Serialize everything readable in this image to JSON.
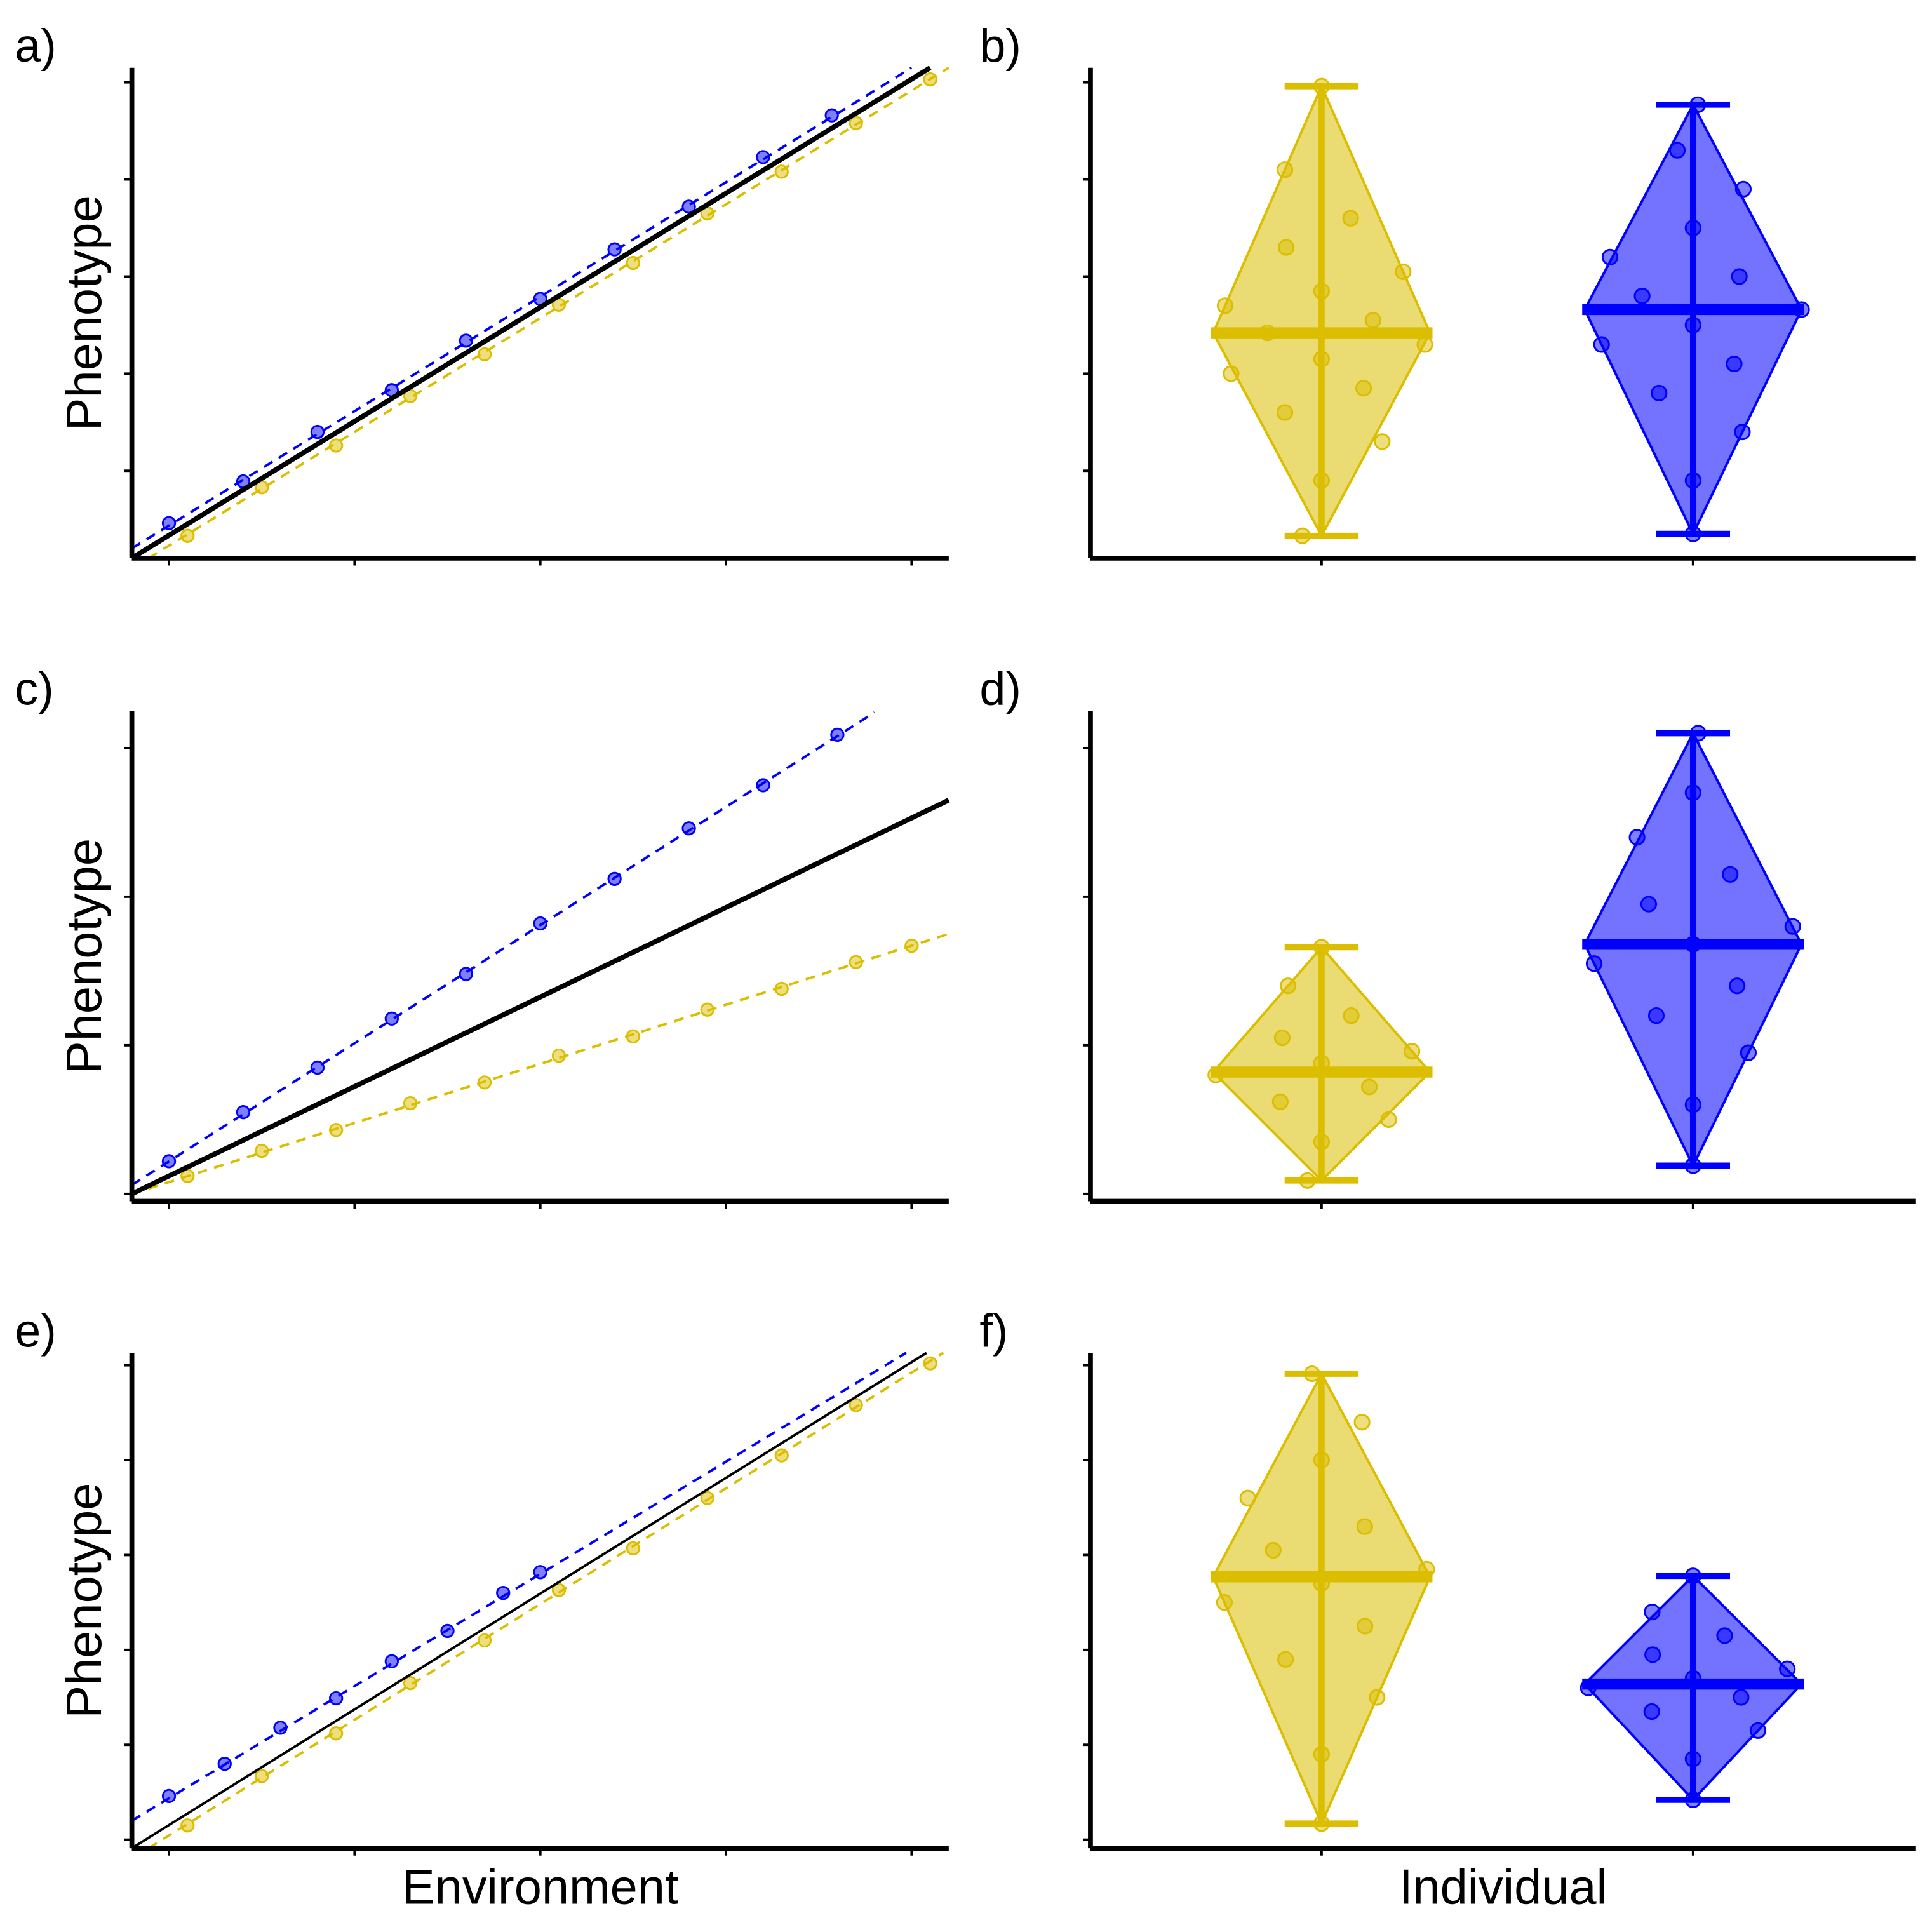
{
  "chart_data": [
    {
      "type": "scatter",
      "panel_label": "a)",
      "ylabel": "Phenotype",
      "xlim": [
        0.8,
        5.2
      ],
      "ylim": [
        0.1,
        5.15
      ],
      "xticks": [
        1,
        2,
        3,
        4,
        5
      ],
      "yticks": [
        1,
        2,
        3,
        4,
        5
      ],
      "reference_line": {
        "x": [
          0.8,
          5.1
        ],
        "y": [
          0.1,
          5.15
        ],
        "color": "#000000",
        "linewidth": 4
      },
      "series": [
        {
          "color": "#DBBE00",
          "x": [
            1.1,
            1.5,
            1.9,
            2.3,
            2.7,
            3.1,
            3.5,
            3.9,
            4.3,
            4.7,
            5.1
          ],
          "values": [
            0.33,
            0.83,
            1.26,
            1.77,
            2.2,
            2.71,
            3.14,
            3.65,
            4.08,
            4.58,
            5.03
          ],
          "fit": {
            "x": [
              0.89,
              5.2
            ],
            "y": [
              0.1,
              5.15
            ]
          }
        },
        {
          "color": "#0000FF",
          "x": [
            1.0,
            1.4,
            1.8,
            2.2,
            2.6,
            3.0,
            3.4,
            3.8,
            4.2,
            4.57
          ],
          "values": [
            0.46,
            0.89,
            1.4,
            1.83,
            2.34,
            2.77,
            3.28,
            3.72,
            4.23,
            4.66
          ],
          "fit": {
            "x": [
              0.8,
              5.0
            ],
            "y": [
              0.2,
              5.15
            ]
          }
        }
      ]
    },
    {
      "type": "beeswarm",
      "panel_label": "b)",
      "ylim": [
        0.1,
        5.15
      ],
      "yticks": [
        1,
        2,
        3,
        4,
        5
      ],
      "categories": [
        null,
        null
      ],
      "groups": [
        {
          "color": "#DBBE00",
          "min": 0.33,
          "max": 4.96,
          "mean": 2.42,
          "values": [
            0.33,
            0.9,
            1.3,
            1.6,
            1.85,
            2.0,
            2.15,
            2.3,
            2.42,
            2.55,
            2.7,
            2.85,
            3.05,
            3.3,
            3.6,
            4.1,
            4.96
          ]
        },
        {
          "color": "#0000FF",
          "min": 0.35,
          "max": 4.77,
          "mean": 2.66,
          "values": [
            0.35,
            0.9,
            1.4,
            1.8,
            2.1,
            2.3,
            2.5,
            2.66,
            2.8,
            3.0,
            3.2,
            3.5,
            3.9,
            4.3,
            4.77
          ]
        }
      ]
    },
    {
      "type": "scatter",
      "panel_label": "c)",
      "ylabel": "Phenotype",
      "xlim": [
        0.8,
        5.2
      ],
      "ylim": [
        -0.05,
        3.25
      ],
      "xticks": [
        1,
        2,
        3,
        4,
        5
      ],
      "yticks": [
        0,
        1,
        2,
        3
      ],
      "reference_line": {
        "x": [
          0.8,
          5.2
        ],
        "y": [
          0,
          2.65
        ],
        "color": "#000000",
        "linewidth": 4
      },
      "series": [
        {
          "color": "#DBBE00",
          "x": [
            1.1,
            1.5,
            1.9,
            2.3,
            2.7,
            3.1,
            3.5,
            3.9,
            4.3,
            4.7,
            5.0
          ],
          "values": [
            0.12,
            0.29,
            0.43,
            0.61,
            0.75,
            0.93,
            1.06,
            1.24,
            1.38,
            1.56,
            1.67
          ],
          "fit": {
            "x": [
              0.8,
              5.2
            ],
            "y": [
              0,
              1.75
            ]
          }
        },
        {
          "color": "#0000FF",
          "x": [
            1.0,
            1.4,
            1.8,
            2.2,
            2.6,
            3.0,
            3.4,
            3.8,
            4.2,
            4.6
          ],
          "values": [
            0.22,
            0.55,
            0.85,
            1.18,
            1.48,
            1.82,
            2.12,
            2.46,
            2.75,
            3.09
          ],
          "fit": {
            "x": [
              0.8,
              4.8
            ],
            "y": [
              0.06,
              3.24
            ]
          }
        }
      ]
    },
    {
      "type": "beeswarm",
      "panel_label": "d)",
      "ylim": [
        -0.05,
        3.25
      ],
      "yticks": [
        0,
        1,
        2,
        3
      ],
      "categories": [
        null,
        null
      ],
      "groups": [
        {
          "color": "#DBBE00",
          "min": 0.09,
          "max": 1.66,
          "mean": 0.82,
          "values": [
            0.09,
            0.35,
            0.5,
            0.62,
            0.72,
            0.8,
            0.88,
            0.96,
            1.05,
            1.2,
            1.4,
            1.66
          ]
        },
        {
          "color": "#0000FF",
          "min": 0.19,
          "max": 3.1,
          "mean": 1.68,
          "values": [
            0.19,
            0.6,
            0.95,
            1.2,
            1.4,
            1.55,
            1.68,
            1.8,
            1.95,
            2.15,
            2.4,
            2.7,
            3.1
          ]
        }
      ]
    },
    {
      "type": "scatter",
      "panel_label": "e)",
      "ylabel": "Phenotype",
      "xlabel": "Environment",
      "xlim": [
        0.8,
        5.2
      ],
      "ylim": [
        -0.09,
        5.13
      ],
      "xticks": [
        1,
        2,
        3,
        4,
        5
      ],
      "yticks": [
        0,
        1,
        2,
        3,
        4,
        5
      ],
      "reference_line": {
        "x": [
          0.8,
          5.08
        ],
        "y": [
          -0.09,
          5.13
        ],
        "color": "#000000",
        "linewidth": 2
      },
      "series": [
        {
          "color": "#DBBE00",
          "x": [
            1.1,
            1.5,
            1.9,
            2.3,
            2.7,
            3.1,
            3.5,
            3.9,
            4.3,
            4.7,
            5.1
          ],
          "values": [
            0.15,
            0.67,
            1.12,
            1.65,
            2.1,
            2.63,
            3.07,
            3.6,
            4.05,
            4.58,
            5.02
          ],
          "fit": {
            "x": [
              0.89,
              5.17
            ],
            "y": [
              -0.09,
              5.13
            ]
          }
        },
        {
          "color": "#0000FF",
          "x": [
            1.0,
            1.3,
            1.6,
            1.9,
            2.2,
            2.5,
            2.8,
            3.0
          ],
          "values": [
            0.46,
            0.8,
            1.18,
            1.49,
            1.88,
            2.2,
            2.6,
            2.82
          ],
          "fit": {
            "x": [
              0.8,
              4.97
            ],
            "y": [
              0.2,
              5.13
            ]
          }
        }
      ]
    },
    {
      "type": "beeswarm",
      "panel_label": "f)",
      "xlabel": "Individual",
      "ylim": [
        -0.09,
        5.13
      ],
      "yticks": [
        0,
        1,
        2,
        3,
        4,
        5
      ],
      "categories": [
        null,
        null
      ],
      "groups": [
        {
          "color": "#DBBE00",
          "min": 0.17,
          "max": 4.91,
          "mean": 2.77,
          "values": [
            0.17,
            0.9,
            1.5,
            1.9,
            2.25,
            2.5,
            2.7,
            2.85,
            3.05,
            3.3,
            3.6,
            4.0,
            4.4,
            4.91
          ]
        },
        {
          "color": "#0000FF",
          "min": 0.42,
          "max": 2.78,
          "mean": 1.64,
          "values": [
            0.42,
            0.85,
            1.15,
            1.35,
            1.5,
            1.6,
            1.7,
            1.8,
            1.95,
            2.15,
            2.4,
            2.78
          ]
        }
      ]
    }
  ]
}
